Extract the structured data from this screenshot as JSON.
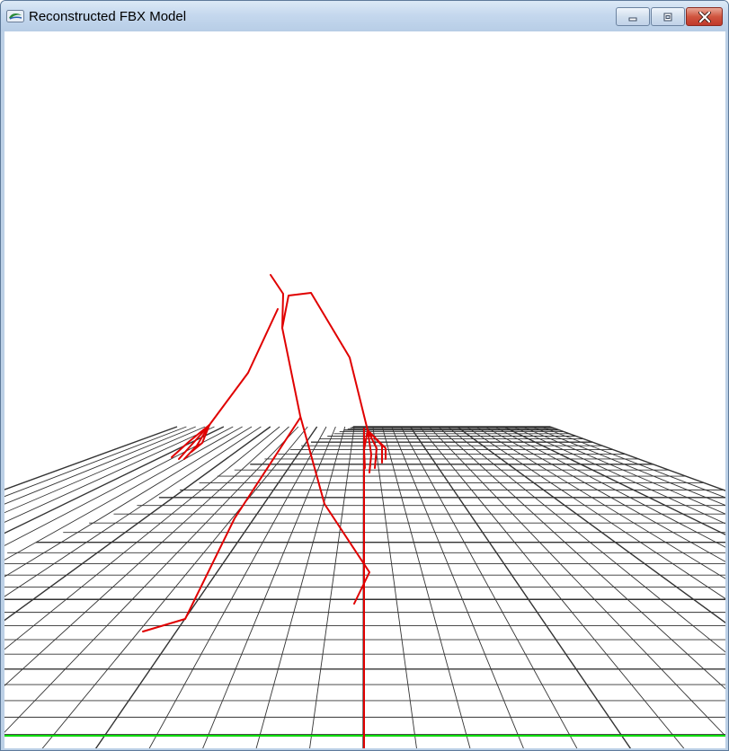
{
  "window": {
    "title": "Reconstructed FBX Model",
    "icon": "app-window-icon"
  },
  "caption_buttons": [
    {
      "name": "minimize-button",
      "icon": "minimize-icon"
    },
    {
      "name": "maximize-button",
      "icon": "maximize-icon"
    },
    {
      "name": "close-button",
      "icon": "close-icon"
    }
  ],
  "scene": {
    "skeleton_color": "#e00000",
    "grid_color": "#333333",
    "ground_axis_color": "#00dd00"
  }
}
